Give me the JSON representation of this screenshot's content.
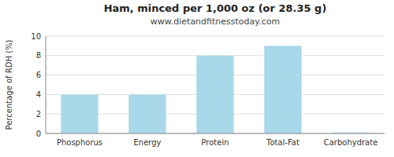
{
  "chart_data": {
    "type": "bar",
    "title": "Ham, minced per 1,000 oz (or 28.35 g)",
    "subtitle": "www.dietandfitnesstoday.com",
    "ylabel": "Percentage of RDH (%)",
    "categories": [
      "Phosphorus",
      "Energy",
      "Protein",
      "Total-Fat",
      "Carbohydrate"
    ],
    "values": [
      4.0,
      4.0,
      8.0,
      9.0,
      0.1
    ],
    "color": "#a8d8ea",
    "ylim": [
      0,
      10
    ],
    "yticks": [
      0,
      2,
      4,
      6,
      8,
      10
    ],
    "grid": true
  }
}
